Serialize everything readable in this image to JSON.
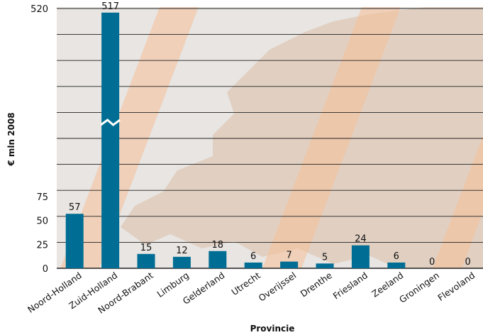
{
  "chart_data": {
    "type": "bar",
    "xlabel": "Provincie",
    "ylabel": "€ mln 2008",
    "categories": [
      "Noord-Holland",
      "Zuid-Holland",
      "Noord-Brabant",
      "Limburg",
      "Gelderland",
      "Utrecht",
      "Overijssel",
      "Drenthe",
      "Friesland",
      "Zeeland",
      "Groningen",
      "Flevoland"
    ],
    "values": [
      57,
      517,
      15,
      12,
      18,
      6,
      7,
      5,
      24,
      6,
      0,
      0
    ],
    "value_labels": [
      "57",
      "517",
      "15",
      "12",
      "18",
      "6",
      "7",
      "5",
      "24",
      "6",
      "0",
      "0"
    ],
    "y_ticks": [
      "0",
      "25",
      "50",
      "75",
      "520"
    ],
    "axis_break": {
      "lower": 75,
      "upper_start": 438,
      "upper_end": 520
    },
    "grid": true,
    "colors": {
      "bar": "#006e94",
      "panel": "#e8e5e2",
      "land": "#e1d0c2",
      "stripe": "#f6bf97",
      "grid": "#222222"
    }
  }
}
